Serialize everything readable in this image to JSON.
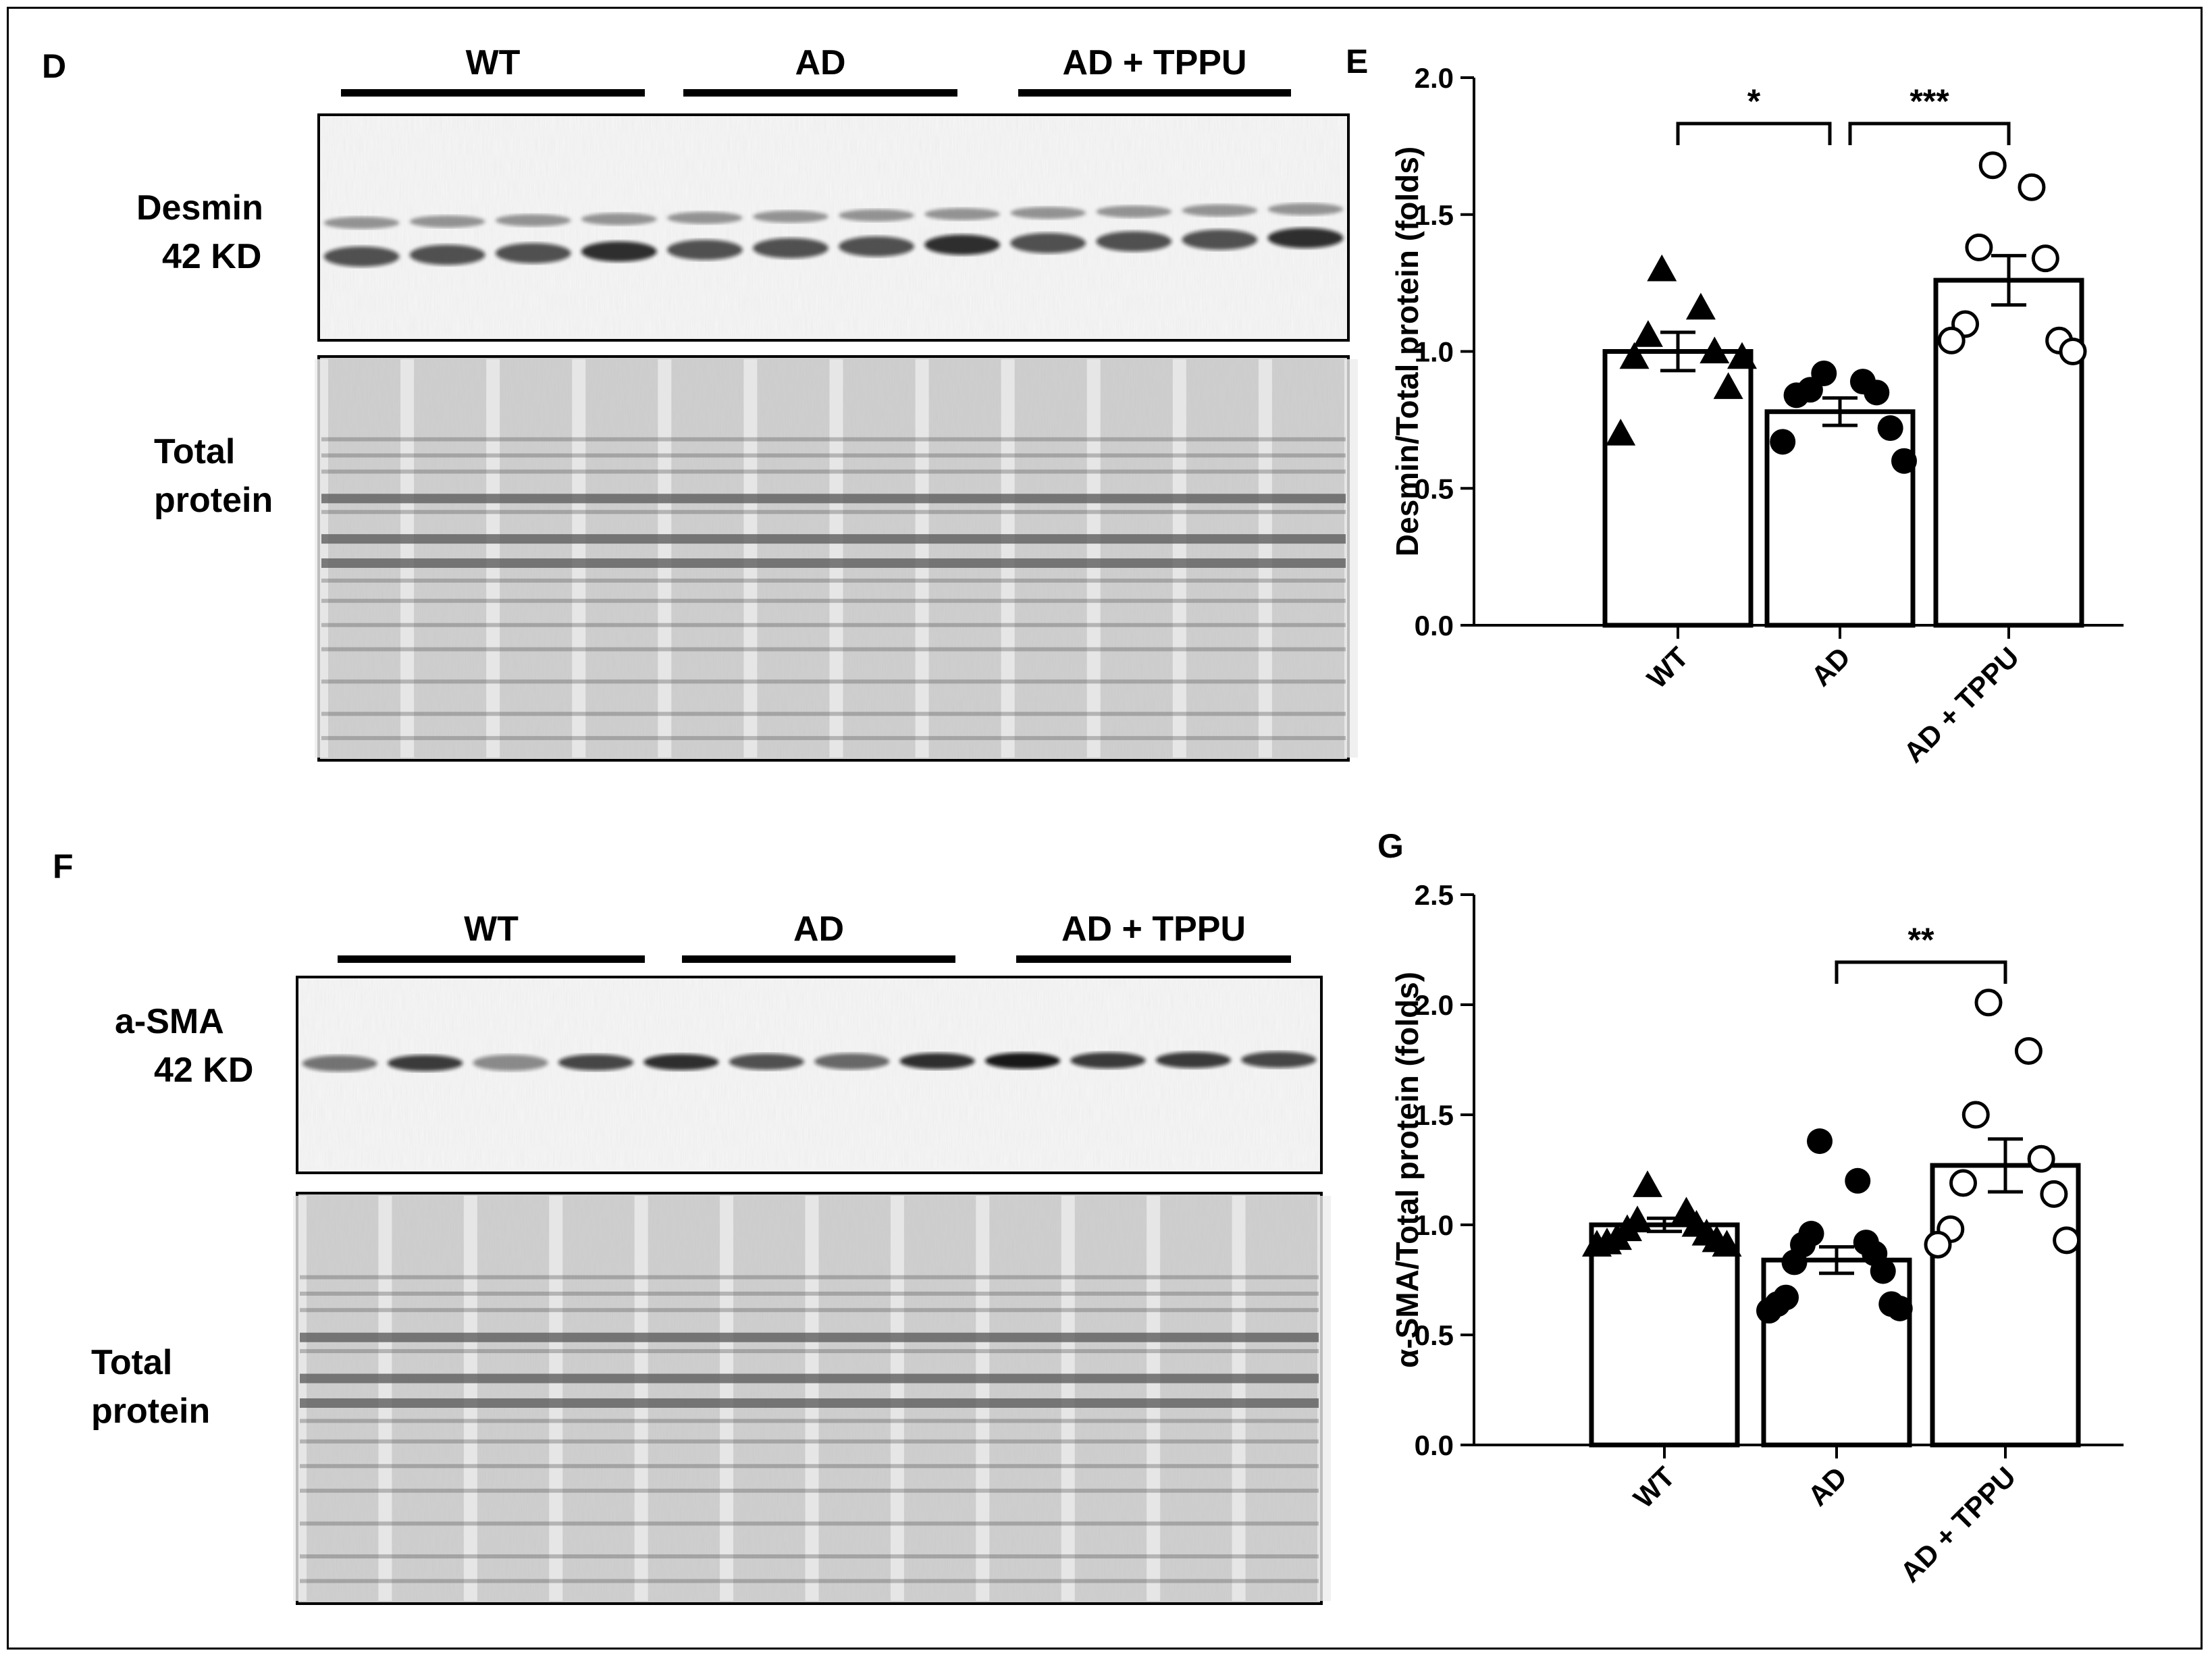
{
  "blots": {
    "D": {
      "panel_label": "D",
      "groups": [
        "WT",
        "AD",
        "AD + TPPU"
      ],
      "band_label": [
        "Desmin",
        "42 KD"
      ],
      "total_label": [
        "Total",
        "protein"
      ]
    },
    "F": {
      "panel_label": "F",
      "groups": [
        "WT",
        "AD",
        "AD + TPPU"
      ],
      "band_label": [
        "a-SMA",
        "42 KD"
      ],
      "total_label": [
        "Total",
        "protein"
      ]
    }
  },
  "chart_data": [
    {
      "panel_label": "E",
      "type": "bar",
      "categories": [
        "WT",
        "AD",
        "AD + TPPU"
      ],
      "values": [
        1.0,
        0.78,
        1.26
      ],
      "sem": [
        0.07,
        0.05,
        0.09
      ],
      "ylabel": "Desmin/Total protein (folds)",
      "ylim": [
        0,
        2.0
      ],
      "yticks": [
        0.0,
        0.5,
        1.0,
        1.5,
        2.0
      ],
      "tick_labels": [
        "0.0",
        "0.5",
        "1.0",
        "1.5",
        "2.0"
      ],
      "points": [
        {
          "marker": "triangle",
          "values": [
            1.3,
            1.16,
            1.06,
            1.0,
            0.98,
            0.87,
            0.7,
            0.98
          ]
        },
        {
          "marker": "filled-circle",
          "values": [
            0.92,
            0.89,
            0.86,
            0.85,
            0.84,
            0.72,
            0.67,
            0.6
          ]
        },
        {
          "marker": "open-circle",
          "values": [
            1.68,
            1.6,
            1.38,
            1.34,
            1.1,
            1.04,
            1.04,
            1.0
          ]
        }
      ],
      "significance": [
        {
          "from": 0,
          "to": 1,
          "label": "*"
        },
        {
          "from": 1,
          "to": 2,
          "label": "***"
        }
      ]
    },
    {
      "panel_label": "G",
      "type": "bar",
      "categories": [
        "WT",
        "AD",
        "AD + TPPU"
      ],
      "values": [
        1.0,
        0.84,
        1.27
      ],
      "sem": [
        0.03,
        0.06,
        0.12
      ],
      "ylabel": "α-SMA/Total protein (folds)",
      "ylim": [
        0,
        2.5
      ],
      "yticks": [
        0.0,
        0.5,
        1.0,
        1.5,
        2.0,
        2.5
      ],
      "tick_labels": [
        "0.0",
        "0.5",
        "1.0",
        "1.5",
        "2.0",
        "2.5"
      ],
      "points": [
        {
          "marker": "triangle",
          "values": [
            1.18,
            1.06,
            1.02,
            1.0,
            0.98,
            0.96,
            0.94,
            0.93,
            0.92,
            0.91,
            0.91
          ]
        },
        {
          "marker": "filled-circle",
          "values": [
            1.38,
            1.2,
            0.96,
            0.92,
            0.91,
            0.87,
            0.83,
            0.79,
            0.67,
            0.64,
            0.64,
            0.62,
            0.61
          ]
        },
        {
          "marker": "open-circle",
          "values": [
            2.01,
            1.79,
            1.5,
            1.3,
            1.19,
            1.14,
            0.98,
            0.93,
            0.91
          ]
        }
      ],
      "significance": [
        {
          "from": 1,
          "to": 2,
          "label": "**"
        }
      ]
    }
  ]
}
